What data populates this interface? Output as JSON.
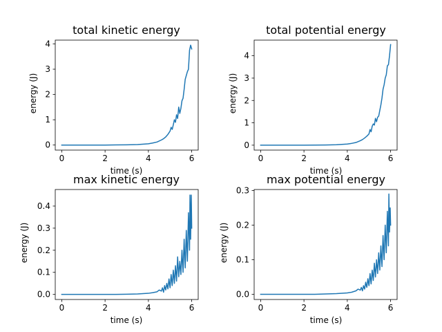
{
  "chart_data": [
    {
      "type": "line",
      "title": "total kinetic energy",
      "xlabel": "time (s)",
      "ylabel": "energy (J)",
      "xlim": [
        -0.3,
        6.3
      ],
      "ylim": [
        -0.2,
        4.15
      ],
      "xticks": [
        0,
        2,
        4,
        6
      ],
      "xtick_labels": [
        "0",
        "2",
        "4",
        "6"
      ],
      "yticks": [
        0,
        1,
        2,
        3,
        4
      ],
      "ytick_labels": [
        "0",
        "1",
        "2",
        "3",
        "4"
      ],
      "color": "#1f77b4",
      "series": [
        {
          "x": [
            0,
            0.5,
            1,
            1.5,
            2,
            2.5,
            3,
            3.5,
            4,
            4.2,
            4.4,
            4.6,
            4.7,
            4.8,
            4.9,
            5.0,
            5.05,
            5.1,
            5.15,
            5.2,
            5.25,
            5.3,
            5.35,
            5.4,
            5.45,
            5.5,
            5.55,
            5.6,
            5.65,
            5.7,
            5.75,
            5.8,
            5.85,
            5.9,
            5.95,
            6.0
          ],
          "y": [
            0,
            0,
            0,
            0,
            0,
            0.005,
            0.01,
            0.02,
            0.05,
            0.08,
            0.12,
            0.2,
            0.25,
            0.32,
            0.42,
            0.55,
            0.7,
            0.62,
            0.8,
            1.0,
            0.9,
            1.2,
            1.05,
            1.5,
            1.25,
            1.45,
            1.75,
            1.85,
            2.2,
            2.6,
            2.75,
            2.9,
            3.0,
            3.75,
            3.95,
            3.8
          ]
        }
      ]
    },
    {
      "type": "line",
      "title": "total potential energy",
      "xlabel": "time (s)",
      "ylabel": "energy (J)",
      "xlim": [
        -0.3,
        6.3
      ],
      "ylim": [
        -0.22,
        4.7
      ],
      "xticks": [
        0,
        2,
        4,
        6
      ],
      "xtick_labels": [
        "0",
        "2",
        "4",
        "6"
      ],
      "yticks": [
        0,
        1,
        2,
        3,
        4
      ],
      "ytick_labels": [
        "0",
        "1",
        "2",
        "3",
        "4"
      ],
      "color": "#1f77b4",
      "series": [
        {
          "x": [
            0,
            0.5,
            1,
            1.5,
            2,
            2.5,
            3,
            3.5,
            4,
            4.2,
            4.4,
            4.6,
            4.7,
            4.8,
            4.9,
            5.0,
            5.05,
            5.1,
            5.15,
            5.2,
            5.25,
            5.3,
            5.35,
            5.4,
            5.45,
            5.5,
            5.55,
            5.6,
            5.65,
            5.7,
            5.75,
            5.8,
            5.85,
            5.9,
            5.95,
            6.0
          ],
          "y": [
            0,
            0,
            0,
            0,
            0,
            0.005,
            0.01,
            0.02,
            0.05,
            0.08,
            0.12,
            0.2,
            0.25,
            0.32,
            0.4,
            0.5,
            0.7,
            0.6,
            0.85,
            0.95,
            0.9,
            1.2,
            1.05,
            1.25,
            1.3,
            1.55,
            1.8,
            2.1,
            2.5,
            2.7,
            3.0,
            3.15,
            3.55,
            3.6,
            4.0,
            4.5
          ]
        }
      ]
    },
    {
      "type": "line",
      "title": "max kinetic energy",
      "xlabel": "time (s)",
      "ylabel": "energy (J)",
      "xlim": [
        -0.3,
        6.3
      ],
      "ylim": [
        -0.023,
        0.475
      ],
      "xticks": [
        0,
        2,
        4,
        6
      ],
      "xtick_labels": [
        "0",
        "2",
        "4",
        "6"
      ],
      "yticks": [
        0,
        0.1,
        0.2,
        0.3,
        0.4
      ],
      "ytick_labels": [
        "0.0",
        "0.1",
        "0.2",
        "0.3",
        "0.4"
      ],
      "color": "#1f77b4",
      "series": [
        {
          "x": [
            0,
            0.5,
            1,
            1.5,
            2,
            2.5,
            3,
            3.5,
            4,
            4.2,
            4.4,
            4.5,
            4.6,
            4.65,
            4.7,
            4.75,
            4.8,
            4.85,
            4.9,
            4.95,
            5.0,
            5.05,
            5.1,
            5.15,
            5.2,
            5.25,
            5.3,
            5.35,
            5.4,
            5.45,
            5.5,
            5.55,
            5.6,
            5.65,
            5.7,
            5.75,
            5.8,
            5.85,
            5.9,
            5.92,
            5.95,
            5.98,
            6.0
          ],
          "y": [
            0,
            0,
            0,
            0,
            0,
            0,
            0.001,
            0.002,
            0.005,
            0.008,
            0.012,
            0.02,
            0.015,
            0.03,
            0.01,
            0.04,
            0.02,
            0.05,
            0.025,
            0.07,
            0.03,
            0.09,
            0.04,
            0.11,
            0.05,
            0.13,
            0.06,
            0.17,
            0.08,
            0.15,
            0.09,
            0.2,
            0.1,
            0.25,
            0.12,
            0.29,
            0.15,
            0.37,
            0.2,
            0.45,
            0.25,
            0.45,
            0.3
          ]
        }
      ]
    },
    {
      "type": "line",
      "title": "max potential energy",
      "xlabel": "time (s)",
      "ylabel": "energy (J)",
      "xlim": [
        -0.3,
        6.3
      ],
      "ylim": [
        -0.015,
        0.303
      ],
      "xticks": [
        0,
        2,
        4,
        6
      ],
      "xtick_labels": [
        "0",
        "2",
        "4",
        "6"
      ],
      "yticks": [
        0,
        0.1,
        0.2,
        0.3
      ],
      "ytick_labels": [
        "0.0",
        "0.1",
        "0.2",
        "0.3"
      ],
      "color": "#1f77b4",
      "series": [
        {
          "x": [
            0,
            0.5,
            1,
            1.5,
            2,
            2.5,
            3,
            3.5,
            4,
            4.2,
            4.4,
            4.5,
            4.6,
            4.65,
            4.7,
            4.75,
            4.8,
            4.85,
            4.9,
            4.95,
            5.0,
            5.05,
            5.1,
            5.15,
            5.2,
            5.25,
            5.3,
            5.35,
            5.4,
            5.45,
            5.5,
            5.55,
            5.6,
            5.65,
            5.7,
            5.75,
            5.8,
            5.85,
            5.9,
            5.92,
            5.95,
            5.98,
            6.0
          ],
          "y": [
            0,
            0,
            0,
            0,
            0,
            0,
            0.001,
            0.002,
            0.004,
            0.006,
            0.01,
            0.015,
            0.012,
            0.02,
            0.01,
            0.025,
            0.015,
            0.035,
            0.02,
            0.045,
            0.025,
            0.06,
            0.03,
            0.07,
            0.04,
            0.09,
            0.05,
            0.1,
            0.06,
            0.12,
            0.07,
            0.14,
            0.08,
            0.17,
            0.1,
            0.2,
            0.12,
            0.24,
            0.14,
            0.29,
            0.18,
            0.25,
            0.2
          ]
        }
      ]
    }
  ]
}
